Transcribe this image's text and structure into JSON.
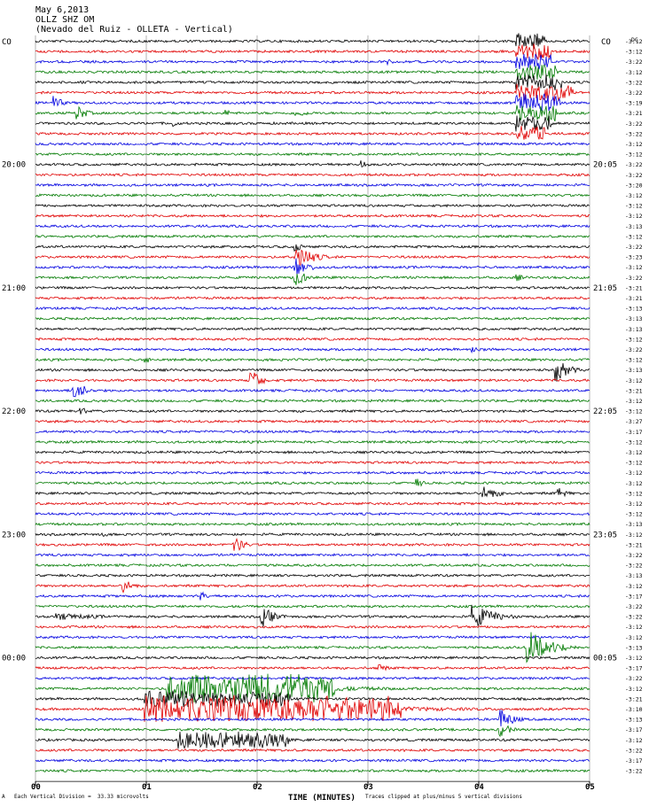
{
  "header": {
    "line1": "May 6,2013",
    "line2": "OLLZ SHZ OM",
    "line3": "(Nevado del Ruiz - OLLETA - Vertical)"
  },
  "corner": {
    "left": "CO",
    "right": "CO",
    "dc": "DC"
  },
  "footer": {
    "symbol": "A",
    "note_left": "Each Vertical Division =  33.33 microvolts",
    "note_right": "Traces clipped at plus/minus 5 vertical divisions"
  },
  "colors": {
    "black": "#000000",
    "red": "#e00000",
    "blue": "#0000e0",
    "green": "#007a00",
    "grid": "#808080"
  },
  "chart_data": {
    "type": "line",
    "title": "May 6,2013",
    "xlabel": "TIME (MINUTES)",
    "ylabel": "",
    "x_ticks": [
      "00",
      "01",
      "02",
      "03",
      "04",
      "05"
    ],
    "xlim": [
      0,
      5
    ],
    "left_time_labels": [
      {
        "row": 12,
        "label": "20:00"
      },
      {
        "row": 24,
        "label": "21:00"
      },
      {
        "row": 36,
        "label": "22:00"
      },
      {
        "row": 48,
        "label": "23:00"
      },
      {
        "row": 60,
        "label": "00:00"
      }
    ],
    "right_time_labels": [
      {
        "row": 12,
        "label": "20:05"
      },
      {
        "row": 24,
        "label": "21:05"
      },
      {
        "row": 36,
        "label": "22:05"
      },
      {
        "row": 48,
        "label": "23:05"
      },
      {
        "row": 60,
        "label": "00:05"
      }
    ],
    "trace_color_cycle": [
      "black",
      "red",
      "blue",
      "green"
    ],
    "trace_count": 72,
    "trace_levels": [
      "-3:12",
      "-3:12",
      "-3:22",
      "-3:12",
      "-3:22",
      "-3:22",
      "-3:19",
      "-3:21",
      "-3:22",
      "-3:22",
      "-3:12",
      "-3:12",
      "-3:22",
      "-3:22",
      "-3:20",
      "-3:12",
      "-3:12",
      "-3:12",
      "-3:13",
      "-3:12",
      "-3:22",
      "-3:23",
      "-3:12",
      "-3:22",
      "-3:21",
      "-3:21",
      "-3:13",
      "-3:13",
      "-3:13",
      "-3:12",
      "-3:22",
      "-3:12",
      "-3:13",
      "-3:12",
      "-3:21",
      "-3:12",
      "-3:12",
      "-3:27",
      "-3:17",
      "-3:12",
      "-3:12",
      "-3:12",
      "-3:12",
      "-3:12",
      "-3:12",
      "-3:12",
      "-3:12",
      "-3:13",
      "-3:12",
      "-3:21",
      "-3:22",
      "-3:22",
      "-3:13",
      "-3:12",
      "-3:17",
      "-3:22",
      "-3:22",
      "-3:12",
      "-3:12",
      "-3:13",
      "-3:12",
      "-3:17",
      "-3:22",
      "-3:12",
      "-3:21",
      "-3:10",
      "-3:13",
      "-3:17",
      "-3:12",
      "-3:22",
      "-3:17",
      "-3:22"
    ],
    "events": [
      {
        "row": 0,
        "minute": 4.35,
        "amp": 10,
        "dur": 0.25,
        "dense": 1
      },
      {
        "row": 1,
        "minute": 4.35,
        "amp": 10,
        "dur": 0.3,
        "dense": 1
      },
      {
        "row": 2,
        "minute": 4.35,
        "amp": 10,
        "dur": 0.3,
        "dense": 1
      },
      {
        "row": 3,
        "minute": 4.35,
        "amp": 10,
        "dur": 0.35,
        "dense": 1
      },
      {
        "row": 4,
        "minute": 4.35,
        "amp": 10,
        "dur": 0.4,
        "dense": 1
      },
      {
        "row": 5,
        "minute": 4.35,
        "amp": 11,
        "dur": 0.5,
        "dense": 1
      },
      {
        "row": 6,
        "minute": 4.35,
        "amp": 11,
        "dur": 0.4,
        "dense": 1
      },
      {
        "row": 7,
        "minute": 4.35,
        "amp": 10,
        "dur": 0.35,
        "dense": 1
      },
      {
        "row": 8,
        "minute": 4.35,
        "amp": 10,
        "dur": 0.3,
        "dense": 1
      },
      {
        "row": 9,
        "minute": 4.35,
        "amp": 10,
        "dur": 0.25,
        "dense": 1
      },
      {
        "row": 6,
        "minute": 0.18,
        "amp": 8,
        "dur": 0.12,
        "dense": 0
      },
      {
        "row": 7,
        "minute": 0.38,
        "amp": 9,
        "dur": 0.15,
        "dense": 0
      },
      {
        "row": 7,
        "minute": 1.72,
        "amp": 4,
        "dur": 0.15,
        "dense": 0
      },
      {
        "row": 7,
        "minute": 2.35,
        "amp": 4,
        "dur": 0.3,
        "dense": 0
      },
      {
        "row": 8,
        "minute": 1.25,
        "amp": 4,
        "dur": 0.1,
        "dense": 0
      },
      {
        "row": 2,
        "minute": 3.18,
        "amp": 4,
        "dur": 0.1,
        "dense": 0
      },
      {
        "row": 12,
        "minute": 2.95,
        "amp": 5,
        "dur": 0.1,
        "dense": 0
      },
      {
        "row": 21,
        "minute": 2.35,
        "amp": 16,
        "dur": 0.25,
        "dense": 0
      },
      {
        "row": 22,
        "minute": 2.35,
        "amp": 12,
        "dur": 0.2,
        "dense": 0
      },
      {
        "row": 23,
        "minute": 2.35,
        "amp": 9,
        "dur": 0.2,
        "dense": 0
      },
      {
        "row": 20,
        "minute": 2.35,
        "amp": 6,
        "dur": 0.15,
        "dense": 0
      },
      {
        "row": 23,
        "minute": 4.35,
        "amp": 4,
        "dur": 0.15,
        "dense": 0
      },
      {
        "row": 30,
        "minute": 3.95,
        "amp": 5,
        "dur": 0.15,
        "dense": 0
      },
      {
        "row": 31,
        "minute": 1.0,
        "amp": 4,
        "dur": 0.1,
        "dense": 0
      },
      {
        "row": 32,
        "minute": 4.7,
        "amp": 14,
        "dur": 0.2,
        "dense": 0
      },
      {
        "row": 33,
        "minute": 1.95,
        "amp": 13,
        "dur": 0.15,
        "dense": 0
      },
      {
        "row": 34,
        "minute": 0.35,
        "amp": 16,
        "dur": 0.15,
        "dense": 0
      },
      {
        "row": 36,
        "minute": 0.42,
        "amp": 5,
        "dur": 0.1,
        "dense": 0
      },
      {
        "row": 43,
        "minute": 3.45,
        "amp": 5,
        "dur": 0.12,
        "dense": 0
      },
      {
        "row": 44,
        "minute": 4.05,
        "amp": 8,
        "dur": 0.25,
        "dense": 0
      },
      {
        "row": 44,
        "minute": 4.72,
        "amp": 6,
        "dur": 0.15,
        "dense": 0
      },
      {
        "row": 48,
        "minute": 0.6,
        "amp": 4,
        "dur": 0.1,
        "dense": 0
      },
      {
        "row": 49,
        "minute": 1.8,
        "amp": 10,
        "dur": 0.15,
        "dense": 0
      },
      {
        "row": 53,
        "minute": 0.8,
        "amp": 8,
        "dur": 0.15,
        "dense": 0
      },
      {
        "row": 54,
        "minute": 1.5,
        "amp": 5,
        "dur": 0.1,
        "dense": 0
      },
      {
        "row": 56,
        "minute": 0.2,
        "amp": 4,
        "dur": 0.9,
        "dense": 0
      },
      {
        "row": 56,
        "minute": 2.05,
        "amp": 12,
        "dur": 0.2,
        "dense": 0
      },
      {
        "row": 56,
        "minute": 3.95,
        "amp": 14,
        "dur": 0.35,
        "dense": 0
      },
      {
        "row": 59,
        "minute": 4.45,
        "amp": 20,
        "dur": 0.35,
        "dense": 0
      },
      {
        "row": 61,
        "minute": 3.1,
        "amp": 6,
        "dur": 0.12,
        "dense": 0
      },
      {
        "row": 63,
        "minute": 1.2,
        "amp": 18,
        "dur": 1.5,
        "dense": 1
      },
      {
        "row": 64,
        "minute": 1.0,
        "amp": 10,
        "dur": 1.3,
        "dense": 1
      },
      {
        "row": 65,
        "minute": 1.0,
        "amp": 16,
        "dur": 2.3,
        "dense": 1
      },
      {
        "row": 66,
        "minute": 4.2,
        "amp": 12,
        "dur": 0.2,
        "dense": 0
      },
      {
        "row": 67,
        "minute": 4.2,
        "amp": 9,
        "dur": 0.15,
        "dense": 0
      },
      {
        "row": 68,
        "minute": 1.3,
        "amp": 10,
        "dur": 1.0,
        "dense": 1
      }
    ]
  }
}
